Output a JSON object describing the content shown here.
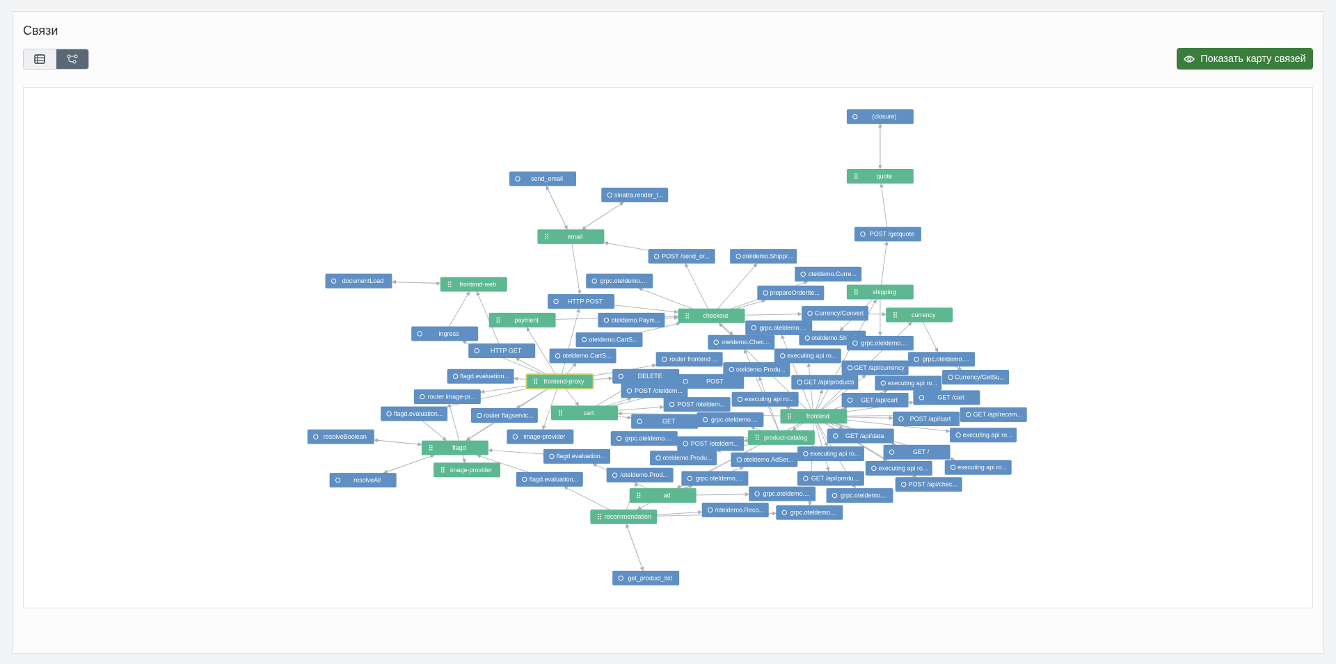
{
  "header": {
    "title": "Связи"
  },
  "toolbar": {
    "button": "Показать карту связей"
  },
  "graph": {
    "nodes": [
      "(closure)",
      "quote",
      "send_email",
      "sinatra.render_t...",
      "email",
      "POST /getquote",
      "POST /send_or...",
      "oteldemo.Shipp/...",
      "oteldemo.Curre...",
      "documentLoad",
      "frontend-web",
      "grpc.oteldemo....",
      "prepareOrderIte...",
      "shipping",
      "HTTP POST",
      "payment",
      "oteldemo.Paym...",
      "checkout",
      "Currency/Convert",
      "currency",
      "grpc.oteldemo....",
      "ingress",
      "oteldemo.CartS...",
      "oteldemo.Chec...",
      "oteldemo.Shippi...",
      "grpc.oteldemo....",
      "HTTP GET",
      "oteldemo.CartS...",
      "router frontend ...",
      "executing api ro...",
      "grpc.oteldemo....",
      "flagd.evaluation...",
      "frontend-proxy",
      "DELETE",
      "oteldemo.Produ...",
      "GET /api/currency",
      "Currency/GetSu...",
      "POST",
      "GET /api/products",
      "executing api ro...",
      "router image-pr...",
      "POST /oteldem...",
      "executing api ro...",
      "POST /oteldem...",
      "GET /api/cart",
      "GET /cart",
      "flagd.evaluation...",
      "router flagservic...",
      "cart",
      "GET",
      "grpc.oteldemo....",
      "frontend",
      "POST /api/cart",
      "GET /api/recom...",
      "resolveBoolean",
      "image-provider",
      "grpc.oteldemo....",
      "product-catalog",
      "GET /api/data",
      "executing api ro...",
      "flagd",
      "POST /oteldem...",
      "flagd.evaluation...",
      "executing api ro...",
      "GET /",
      "image-provider",
      "oteldemo.Produ...",
      "oteldemo.AdSer...",
      "executing api ro...",
      "executing api ro...",
      "resolveAll",
      "flagd.evaluation...",
      "/oteldemo.Prod...",
      "grpc.oteldemo....",
      "GET /api/produ...",
      "POST /api/chec...",
      "ad",
      "grpc.oteldemo....",
      "grpc.oteldemo....",
      "recommendation",
      "/oteldemo.Reco...",
      "grpc.oteldemo....",
      "get_product_list"
    ]
  }
}
